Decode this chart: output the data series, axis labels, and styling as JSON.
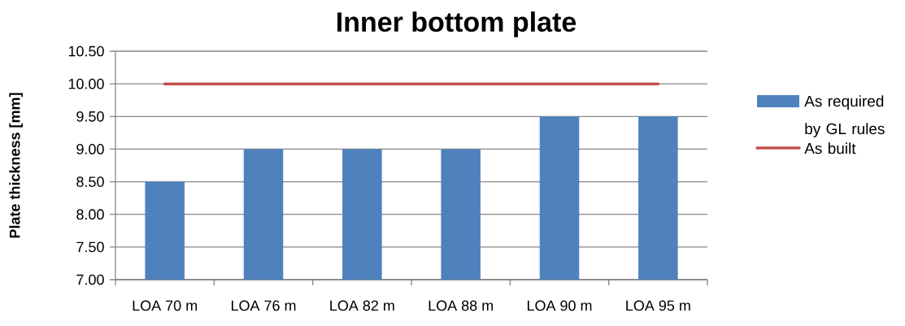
{
  "chart_data": {
    "type": "bar",
    "title": "Inner bottom plate",
    "ylabel": "Plate thickness [mm]",
    "categories": [
      "LOA 70 m",
      "LOA 76 m",
      "LOA 82 m",
      "LOA 88 m",
      "LOA 90 m",
      "LOA 95 m"
    ],
    "series": [
      {
        "name": "As required by GL rules",
        "type": "bar",
        "color": "#4f81bd",
        "values": [
          8.5,
          9,
          9,
          9,
          9.5,
          9.5
        ]
      },
      {
        "name": "As built",
        "type": "line",
        "color": "#c0504d",
        "values": [
          10,
          10,
          10,
          10,
          10,
          10
        ]
      }
    ],
    "ylim": [
      7,
      10.5
    ],
    "yticks": [
      {
        "value": 7,
        "label": "7.00"
      },
      {
        "value": 7.5,
        "label": "7.50"
      },
      {
        "value": 8,
        "label": "8.00"
      },
      {
        "value": 8.5,
        "label": "8.50"
      },
      {
        "value": 9,
        "label": "9.00"
      },
      {
        "value": 9.5,
        "label": "9.50"
      },
      {
        "value": 10,
        "label": "10.00"
      },
      {
        "value": 10.5,
        "label": "10.50"
      }
    ],
    "grid": "y",
    "legend": "right"
  }
}
